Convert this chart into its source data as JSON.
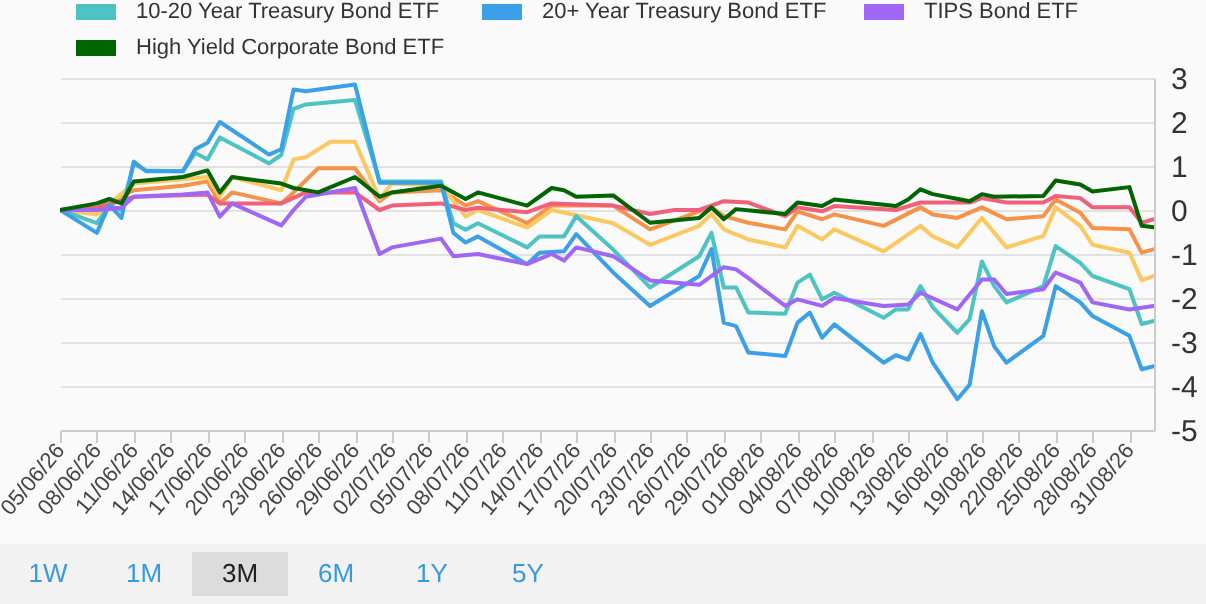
{
  "chart_data": {
    "type": "line",
    "xlim": [
      "--06-05",
      "--09-02"
    ],
    "xticks": [
      {
        "value": "--06-05",
        "label": "05/06/26"
      },
      {
        "value": "--06-08",
        "label": "08/06/26"
      },
      {
        "value": "--06-11",
        "label": "11/06/26"
      },
      {
        "value": "--06-14",
        "label": "14/06/26"
      },
      {
        "value": "--06-17",
        "label": "17/06/26"
      },
      {
        "value": "--06-20",
        "label": "20/06/26"
      },
      {
        "value": "--06-23",
        "label": "23/06/26"
      },
      {
        "value": "--06-26",
        "label": "26/06/26"
      },
      {
        "value": "--06-29",
        "label": "29/06/26"
      },
      {
        "value": "--07-02",
        "label": "02/07/26"
      },
      {
        "value": "--07-05",
        "label": "05/07/26"
      },
      {
        "value": "--07-08",
        "label": "08/07/26"
      },
      {
        "value": "--07-11",
        "label": "11/07/26"
      },
      {
        "value": "--07-14",
        "label": "14/07/26"
      },
      {
        "value": "--07-17",
        "label": "17/07/26"
      },
      {
        "value": "--07-20",
        "label": "20/07/26"
      },
      {
        "value": "--07-23",
        "label": "23/07/26"
      },
      {
        "value": "--07-26",
        "label": "26/07/26"
      },
      {
        "value": "--07-29",
        "label": "29/07/26"
      },
      {
        "value": "--08-01",
        "label": "01/08/26"
      },
      {
        "value": "--08-04",
        "label": "04/08/26"
      },
      {
        "value": "--08-07",
        "label": "07/08/26"
      },
      {
        "value": "--08-10",
        "label": "10/08/26"
      },
      {
        "value": "--08-13",
        "label": "13/08/26"
      },
      {
        "value": "--08-16",
        "label": "16/08/26"
      },
      {
        "value": "--08-19",
        "label": "19/08/26"
      },
      {
        "value": "--08-22",
        "label": "22/08/26"
      },
      {
        "value": "--08-25",
        "label": "25/08/26"
      },
      {
        "value": "--08-28",
        "label": "28/08/26"
      },
      {
        "value": "--08-31",
        "label": "31/08/26"
      }
    ],
    "ylim": [
      -5,
      3
    ],
    "yticks": [
      -5,
      -4,
      -3,
      -2,
      -1,
      0,
      1,
      2,
      3
    ],
    "grid": "y",
    "legend": "top",
    "line_style": "solid",
    "annotations": [
      "1W",
      "1M",
      "3M",
      "6M",
      "1Y",
      "5Y"
    ],
    "series": [
      {
        "color": "#f5934a",
        "x": [
          "--06-05",
          "--06-08",
          "--06-11",
          "--06-15",
          "--06-17",
          "--06-18",
          "--06-19",
          "--06-23",
          "--06-24",
          "--06-26",
          "--06-29",
          "--07-01",
          "--07-02",
          "--07-06",
          "--07-08",
          "--07-09",
          "--07-13",
          "--07-15",
          "--07-20",
          "--07-23",
          "--07-27",
          "--07-28",
          "--07-29",
          "--07-31",
          "--08-03",
          "--08-04",
          "--08-06",
          "--08-07",
          "--08-11",
          "--08-14",
          "--08-15",
          "--08-17",
          "--08-19",
          "--08-21",
          "--08-24",
          "--08-25",
          "--08-27",
          "--08-28",
          "--08-31",
          "--09-01",
          "--09-02"
        ],
        "values": [
          0,
          0.05,
          0.45,
          0.55,
          0.65,
          0.15,
          0.4,
          0.15,
          0.4,
          0.95,
          0.95,
          0.2,
          0.4,
          0.45,
          0.1,
          0.2,
          -0.3,
          0.1,
          0.1,
          -0.44,
          -0.03,
          0.06,
          -0.14,
          -0.29,
          -0.44,
          -0.03,
          -0.21,
          -0.1,
          -0.36,
          0.06,
          -0.1,
          -0.18,
          0.06,
          -0.21,
          -0.14,
          0.24,
          -0.06,
          -0.41,
          -0.44,
          -0.97,
          -0.89
        ]
      },
      {
        "color": "#fcc862",
        "x": [
          "--06-05",
          "--06-08",
          "--06-11",
          "--06-15",
          "--06-17",
          "--06-18",
          "--06-19",
          "--06-23",
          "--06-24",
          "--06-25",
          "--06-27",
          "--06-29",
          "--07-01",
          "--07-02",
          "--07-06",
          "--07-08",
          "--07-09",
          "--07-13",
          "--07-15",
          "--07-20",
          "--07-23",
          "--07-27",
          "--07-28",
          "--07-29",
          "--07-31",
          "--08-03",
          "--08-04",
          "--08-06",
          "--08-07",
          "--08-11",
          "--08-14",
          "--08-15",
          "--08-17",
          "--08-19",
          "--08-21",
          "--08-24",
          "--08-25",
          "--08-27",
          "--08-28",
          "--08-31",
          "--09-01",
          "--09-02"
        ],
        "values": [
          0,
          -0.1,
          0.6,
          0.7,
          0.75,
          0.3,
          0.75,
          0.45,
          1.15,
          1.2,
          1.55,
          1.55,
          0.25,
          0.6,
          0.55,
          -0.15,
          0,
          -0.4,
          0,
          -0.3,
          -0.79,
          -0.36,
          -0.09,
          -0.44,
          -0.67,
          -0.85,
          -0.36,
          -0.67,
          -0.44,
          -0.94,
          -0.36,
          -0.6,
          -0.85,
          -0.18,
          -0.85,
          -0.59,
          0.06,
          -0.36,
          -0.79,
          -0.97,
          -1.6,
          -1.5
        ]
      },
      {
        "color": "#f0607a",
        "x": [
          "--06-05",
          "--06-08",
          "--06-11",
          "--06-17",
          "--06-18",
          "--06-23",
          "--06-25",
          "--06-29",
          "--07-01",
          "--07-02",
          "--07-06",
          "--07-08",
          "--07-09",
          "--07-13",
          "--07-15",
          "--07-20",
          "--07-23",
          "--07-25",
          "--07-27",
          "--07-29",
          "--07-31",
          "--08-03",
          "--08-04",
          "--08-06",
          "--08-07",
          "--08-12",
          "--08-14",
          "--08-18",
          "--08-19",
          "--08-21",
          "--08-24",
          "--08-25",
          "--08-27",
          "--08-28",
          "--08-31",
          "--09-01",
          "--09-02"
        ],
        "values": [
          0,
          0.05,
          0.3,
          0.35,
          0.15,
          0.15,
          0.4,
          0.4,
          0,
          0.1,
          0.15,
          0,
          0.05,
          -0.05,
          0.15,
          0.1,
          -0.09,
          0,
          0,
          0.2,
          0.17,
          -0.14,
          0.06,
          -0.03,
          0.09,
          0,
          0.17,
          0.17,
          0.27,
          0.17,
          0.17,
          0.32,
          0.27,
          0.06,
          0.06,
          -0.29,
          -0.21
        ]
      },
      {
        "name": "10-20 Year Treasury Bond ETF",
        "color": "#4dc3c3",
        "x": [
          "--06-05",
          "--06-08",
          "--06-09",
          "--06-10",
          "--06-11",
          "--06-12",
          "--06-15",
          "--06-16",
          "--06-17",
          "--06-18",
          "--06-22",
          "--06-23",
          "--06-24",
          "--06-25",
          "--06-29",
          "--07-01",
          "--07-06",
          "--07-07",
          "--07-08",
          "--07-09",
          "--07-13",
          "--07-14",
          "--07-16",
          "--07-17",
          "--07-20",
          "--07-23",
          "--07-27",
          "--07-28",
          "--07-29",
          "--07-30",
          "--07-31",
          "--08-03",
          "--08-04",
          "--08-05",
          "--08-06",
          "--08-07",
          "--08-11",
          "--08-12",
          "--08-13",
          "--08-14",
          "--08-15",
          "--08-17",
          "--08-18",
          "--08-19",
          "--08-20",
          "--08-21",
          "--08-24",
          "--08-25",
          "--08-27",
          "--08-28",
          "--08-31",
          "--09-01",
          "--09-02"
        ],
        "values": [
          0,
          -0.3,
          0.1,
          0,
          1.05,
          0.9,
          0.88,
          1.3,
          1.15,
          1.65,
          1.06,
          1.25,
          2.3,
          2.4,
          2.5,
          0.65,
          0.65,
          -0.3,
          -0.45,
          -0.3,
          -0.85,
          -0.6,
          -0.6,
          -0.14,
          -0.9,
          -1.76,
          -1.05,
          -0.52,
          -1.76,
          -1.76,
          -2.33,
          -2.36,
          -1.65,
          -1.47,
          -2.03,
          -1.88,
          -2.45,
          -2.26,
          -2.26,
          -1.73,
          -2.21,
          -2.79,
          -2.48,
          -1.17,
          -1.73,
          -2.1,
          -1.73,
          -0.82,
          -1.2,
          -1.5,
          -1.8,
          -2.59,
          -2.52
        ]
      },
      {
        "name": "20+ Year Treasury Bond ETF",
        "color": "#3aa0e8",
        "x": [
          "--06-05",
          "--06-08",
          "--06-09",
          "--06-10",
          "--06-11",
          "--06-12",
          "--06-15",
          "--06-16",
          "--06-17",
          "--06-18",
          "--06-22",
          "--06-23",
          "--06-24",
          "--06-25",
          "--06-29",
          "--07-01",
          "--07-02",
          "--07-06",
          "--07-07",
          "--07-08",
          "--07-09",
          "--07-13",
          "--07-14",
          "--07-16",
          "--07-17",
          "--07-20",
          "--07-23",
          "--07-27",
          "--07-28",
          "--07-29",
          "--07-30",
          "--07-31",
          "--08-03",
          "--08-04",
          "--08-05",
          "--08-06",
          "--08-07",
          "--08-11",
          "--08-12",
          "--08-13",
          "--08-14",
          "--08-15",
          "--08-17",
          "--08-18",
          "--08-19",
          "--08-20",
          "--08-21",
          "--08-24",
          "--08-25",
          "--08-27",
          "--08-28",
          "--08-31",
          "--09-01",
          "--09-02"
        ],
        "values": [
          0,
          -0.52,
          0.12,
          -0.18,
          1.1,
          0.88,
          0.88,
          1.38,
          1.53,
          2.0,
          1.26,
          1.38,
          2.74,
          2.7,
          2.85,
          0.62,
          0.62,
          0.62,
          -0.52,
          -0.74,
          -0.6,
          -1.23,
          -0.97,
          -0.94,
          -0.55,
          -1.42,
          -2.18,
          -1.5,
          -0.89,
          -2.56,
          -2.64,
          -3.24,
          -3.32,
          -2.56,
          -2.33,
          -2.9,
          -2.6,
          -3.47,
          -3.3,
          -3.4,
          -2.82,
          -3.47,
          -4.3,
          -3.97,
          -2.3,
          -3.1,
          -3.47,
          -2.86,
          -1.73,
          -2.1,
          -2.41,
          -2.86,
          -3.62,
          -3.55
        ]
      },
      {
        "name": "TIPS Bond ETF",
        "color": "#a066f5",
        "x": [
          "--06-05",
          "--06-08",
          "--06-10",
          "--06-11",
          "--06-15",
          "--06-17",
          "--06-18",
          "--06-19",
          "--06-23",
          "--06-24",
          "--06-25",
          "--06-29",
          "--07-01",
          "--07-02",
          "--07-06",
          "--07-07",
          "--07-09",
          "--07-13",
          "--07-15",
          "--07-16",
          "--07-17",
          "--07-20",
          "--07-23",
          "--07-27",
          "--07-29",
          "--07-30",
          "--07-31",
          "--08-03",
          "--08-04",
          "--08-06",
          "--08-07",
          "--08-11",
          "--08-13",
          "--08-14",
          "--08-17",
          "--08-19",
          "--08-20",
          "--08-21",
          "--08-24",
          "--08-25",
          "--08-27",
          "--08-28",
          "--08-31",
          "--09-02"
        ],
        "values": [
          0,
          0,
          0.05,
          0.3,
          0.35,
          0.4,
          -0.15,
          0.15,
          -0.35,
          0,
          0.3,
          0.5,
          -1.0,
          -0.85,
          -0.65,
          -1.05,
          -1.0,
          -1.23,
          -1.0,
          -1.15,
          -0.85,
          -1.05,
          -1.6,
          -1.7,
          -1.3,
          -1.35,
          -1.55,
          -2.18,
          -2.03,
          -2.18,
          -2.0,
          -2.18,
          -2.15,
          -1.88,
          -2.26,
          -1.58,
          -1.58,
          -1.91,
          -1.8,
          -1.42,
          -1.65,
          -2.1,
          -2.26,
          -2.18
        ]
      },
      {
        "name": "High Yield Corporate Bond ETF",
        "color": "#006400",
        "x": [
          "--06-05",
          "--06-08",
          "--06-09",
          "--06-10",
          "--06-11",
          "--06-15",
          "--06-17",
          "--06-18",
          "--06-19",
          "--06-23",
          "--06-24",
          "--06-26",
          "--06-29",
          "--07-01",
          "--07-02",
          "--07-06",
          "--07-08",
          "--07-09",
          "--07-13",
          "--07-15",
          "--07-16",
          "--07-17",
          "--07-20",
          "--07-23",
          "--07-27",
          "--07-28",
          "--07-29",
          "--07-30",
          "--08-03",
          "--08-04",
          "--08-06",
          "--08-07",
          "--08-12",
          "--08-13",
          "--08-14",
          "--08-15",
          "--08-18",
          "--08-19",
          "--08-20",
          "--08-24",
          "--08-25",
          "--08-27",
          "--08-28",
          "--08-31",
          "--09-01",
          "--09-02"
        ],
        "values": [
          0,
          0.15,
          0.25,
          0.15,
          0.65,
          0.75,
          0.9,
          0.4,
          0.75,
          0.6,
          0.5,
          0.4,
          0.75,
          0.3,
          0.4,
          0.55,
          0.25,
          0.4,
          0.1,
          0.5,
          0.45,
          0.3,
          0.33,
          -0.29,
          -0.18,
          0.06,
          -0.21,
          0.02,
          -0.09,
          0.17,
          0.09,
          0.24,
          0.09,
          0.24,
          0.47,
          0.36,
          0.2,
          0.36,
          0.3,
          0.32,
          0.67,
          0.58,
          0.42,
          0.52,
          -0.36,
          -0.39
        ]
      }
    ]
  }
}
